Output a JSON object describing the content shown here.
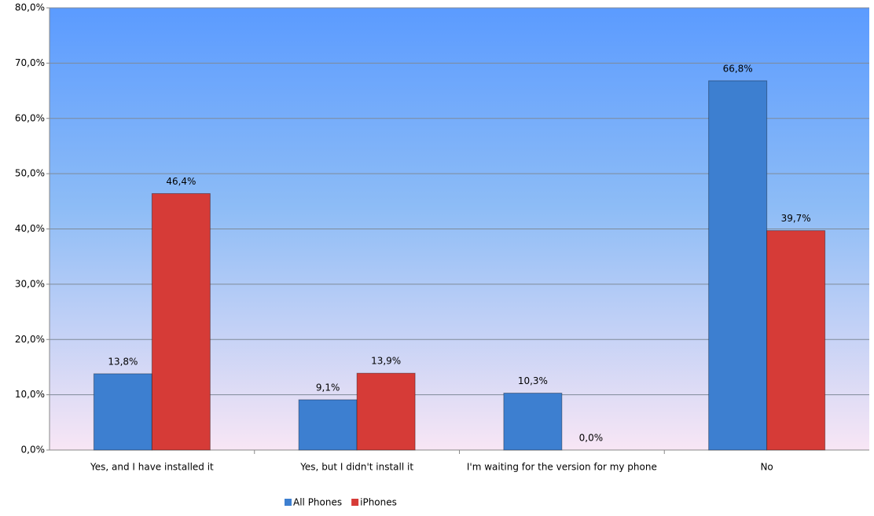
{
  "chart_data": {
    "type": "bar",
    "categories": [
      "Yes, and I have installed it",
      "Yes, but I didn't install it",
      "I'm waiting for the version for my phone",
      "No"
    ],
    "series": [
      {
        "name": "All Phones",
        "color": "#3d7fd0",
        "values": [
          13.8,
          9.1,
          10.3,
          66.8
        ],
        "value_labels": [
          "13,8%",
          "9,1%",
          "10,3%",
          "66,8%"
        ]
      },
      {
        "name": "iPhones",
        "color": "#d63b37",
        "values": [
          46.4,
          13.9,
          0.0,
          39.7
        ],
        "value_labels": [
          "46,4%",
          "13,9%",
          "0,0%",
          "39,7%"
        ]
      }
    ],
    "ylim": [
      0,
      80
    ],
    "yticks": [
      {
        "value": 0,
        "label": "0,0%"
      },
      {
        "value": 10,
        "label": "10,0%"
      },
      {
        "value": 20,
        "label": "20,0%"
      },
      {
        "value": 30,
        "label": "30,0%"
      },
      {
        "value": 40,
        "label": "40,0%"
      },
      {
        "value": 50,
        "label": "50,0%"
      },
      {
        "value": 60,
        "label": "60,0%"
      },
      {
        "value": 70,
        "label": "70,0%"
      },
      {
        "value": 80,
        "label": "80,0%"
      }
    ],
    "grid": true,
    "legend": "bottom"
  }
}
